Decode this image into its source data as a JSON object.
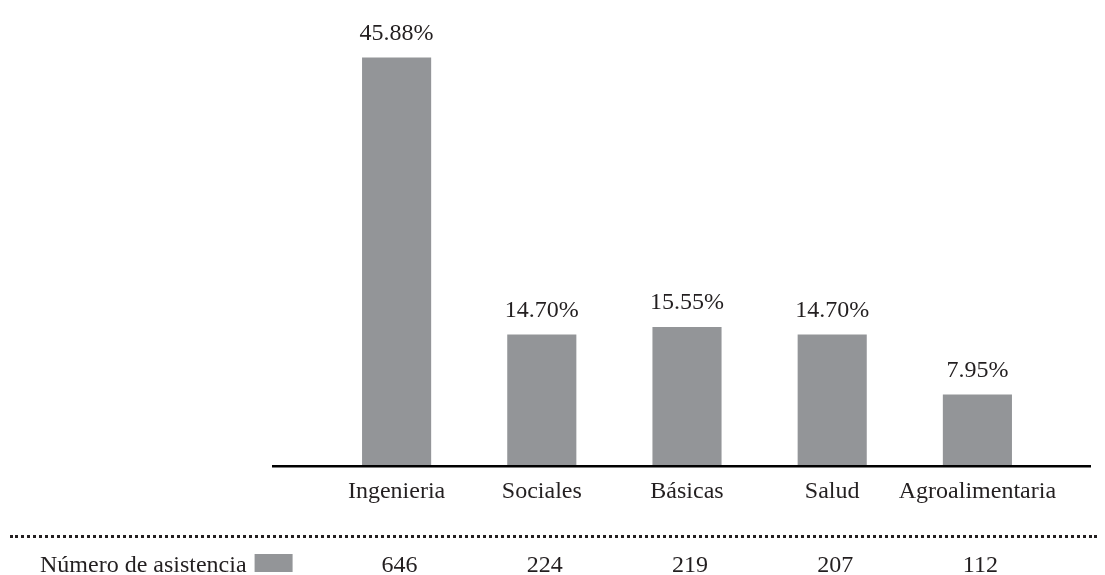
{
  "chart_data": {
    "type": "bar",
    "categories": [
      "Ingenieria",
      "Sociales",
      "Básicas",
      "Salud",
      "Agroalimentaria"
    ],
    "series": [
      {
        "name": "Número de asistencia",
        "color": "#939598",
        "values": [
          45.88,
          14.7,
          15.55,
          14.7,
          7.95
        ],
        "value_labels": [
          "45.88%",
          "14.70%",
          "15.55%",
          "14.70%",
          "7.95%"
        ]
      }
    ],
    "annotations": [
      "646",
      "224",
      "219",
      "207",
      "112"
    ],
    "legend": "bottom left"
  }
}
